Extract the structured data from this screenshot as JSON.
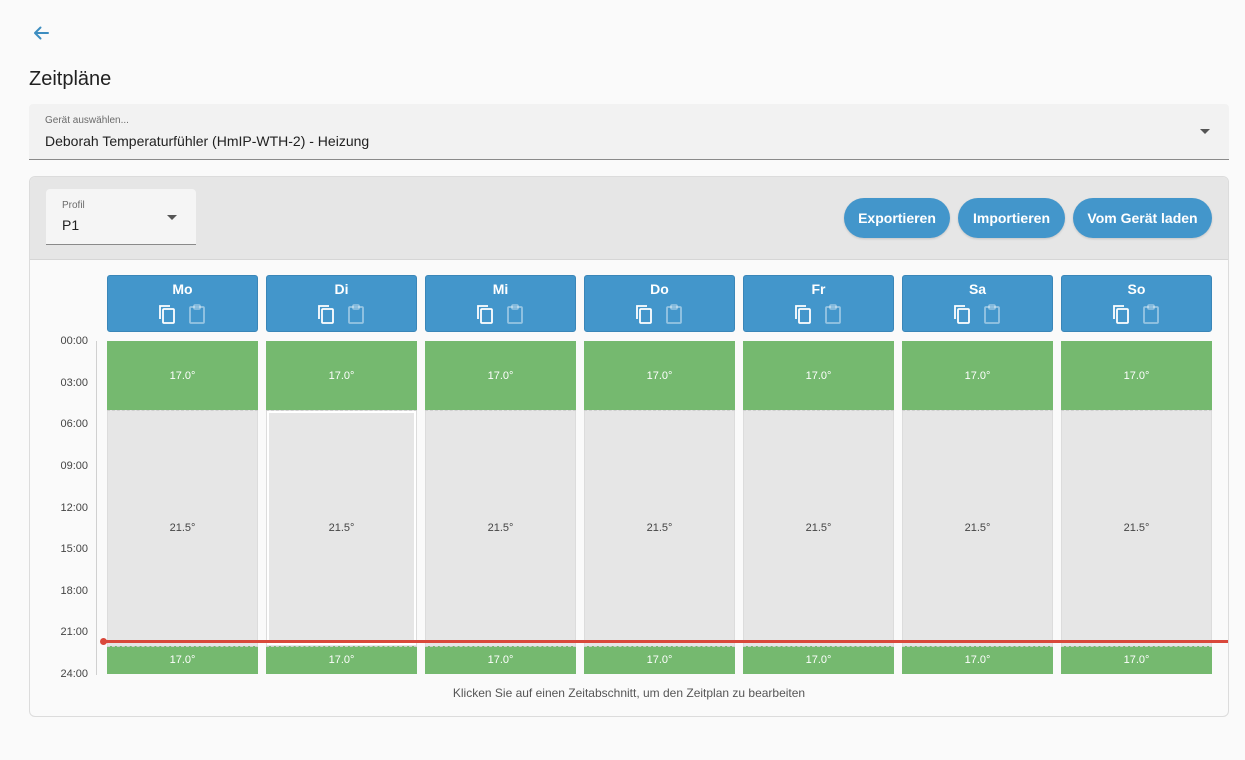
{
  "page": {
    "title": "Zeitpläne"
  },
  "device_select": {
    "label": "Gerät auswählen...",
    "value": "Deborah Temperaturfühler (HmIP-WTH-2) - Heizung"
  },
  "profile_select": {
    "label": "Profil",
    "value": "P1"
  },
  "buttons": {
    "export": "Exportieren",
    "import": "Importieren",
    "load": "Vom Gerät laden"
  },
  "colors": {
    "accent": "#4396cb",
    "green": "#75b96f",
    "grey": "#e6e6e6",
    "now_line": "#d9483b"
  },
  "time_labels": [
    "00:00",
    "03:00",
    "06:00",
    "09:00",
    "12:00",
    "15:00",
    "18:00",
    "21:00",
    "24:00"
  ],
  "days": [
    {
      "name": "Mo",
      "segments": [
        {
          "from": "00:00",
          "to": "05:00",
          "temp": "17.0°",
          "color": "green"
        },
        {
          "from": "05:00",
          "to": "22:00",
          "temp": "21.5°",
          "color": "grey"
        },
        {
          "from": "22:00",
          "to": "24:00",
          "temp": "17.0°",
          "color": "green"
        }
      ]
    },
    {
      "name": "Di",
      "segments": [
        {
          "from": "00:00",
          "to": "05:00",
          "temp": "17.0°",
          "color": "green"
        },
        {
          "from": "05:00",
          "to": "22:00",
          "temp": "21.5°",
          "color": "grey"
        },
        {
          "from": "22:00",
          "to": "24:00",
          "temp": "17.0°",
          "color": "green"
        }
      ]
    },
    {
      "name": "Mi",
      "segments": [
        {
          "from": "00:00",
          "to": "05:00",
          "temp": "17.0°",
          "color": "green"
        },
        {
          "from": "05:00",
          "to": "22:00",
          "temp": "21.5°",
          "color": "grey"
        },
        {
          "from": "22:00",
          "to": "24:00",
          "temp": "17.0°",
          "color": "green"
        }
      ]
    },
    {
      "name": "Do",
      "segments": [
        {
          "from": "00:00",
          "to": "05:00",
          "temp": "17.0°",
          "color": "green"
        },
        {
          "from": "05:00",
          "to": "22:00",
          "temp": "21.5°",
          "color": "grey"
        },
        {
          "from": "22:00",
          "to": "24:00",
          "temp": "17.0°",
          "color": "green"
        }
      ]
    },
    {
      "name": "Fr",
      "segments": [
        {
          "from": "00:00",
          "to": "05:00",
          "temp": "17.0°",
          "color": "green"
        },
        {
          "from": "05:00",
          "to": "22:00",
          "temp": "21.5°",
          "color": "grey"
        },
        {
          "from": "22:00",
          "to": "24:00",
          "temp": "17.0°",
          "color": "green"
        }
      ]
    },
    {
      "name": "Sa",
      "segments": [
        {
          "from": "00:00",
          "to": "05:00",
          "temp": "17.0°",
          "color": "green"
        },
        {
          "from": "05:00",
          "to": "22:00",
          "temp": "21.5°",
          "color": "grey"
        },
        {
          "from": "22:00",
          "to": "24:00",
          "temp": "17.0°",
          "color": "green"
        }
      ]
    },
    {
      "name": "So",
      "segments": [
        {
          "from": "00:00",
          "to": "05:00",
          "temp": "17.0°",
          "color": "green"
        },
        {
          "from": "05:00",
          "to": "22:00",
          "temp": "21.5°",
          "color": "grey"
        },
        {
          "from": "22:00",
          "to": "24:00",
          "temp": "17.0°",
          "color": "green"
        }
      ]
    }
  ],
  "selected_segment": {
    "day": "Di",
    "index": 1
  },
  "current_time": "21:36",
  "hint": "Klicken Sie auf einen Zeitabschnitt, um den Zeitplan zu bearbeiten"
}
